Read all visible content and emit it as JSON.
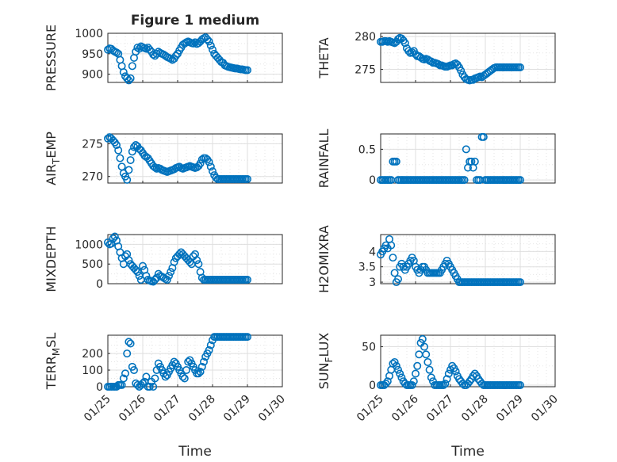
{
  "chart_data": [
    {
      "type": "scatter",
      "title": "Figure 1 medium",
      "ylabel": "PRESSURE",
      "xlim": [
        "01/25",
        "01/30"
      ],
      "ylim": [
        880,
        1000
      ],
      "yticks": [
        "900",
        "950",
        "1000"
      ],
      "x": [
        0,
        0.05,
        0.1,
        0.15,
        0.2,
        0.25,
        0.3,
        0.35,
        0.4,
        0.45,
        0.5,
        0.55,
        0.6,
        0.65,
        0.7,
        0.75,
        0.8,
        0.85,
        0.9,
        0.95,
        1.0,
        1.05,
        1.1,
        1.15,
        1.2,
        1.25,
        1.3,
        1.35,
        1.4,
        1.45,
        1.5,
        1.55,
        1.6,
        1.65,
        1.7,
        1.75,
        1.8,
        1.85,
        1.9,
        1.95,
        2.0,
        2.05,
        2.1,
        2.15,
        2.2,
        2.25,
        2.3,
        2.35,
        2.4,
        2.45,
        2.5,
        2.55,
        2.6,
        2.65,
        2.7,
        2.75,
        2.8,
        2.85,
        2.9,
        2.95,
        3.0,
        3.05,
        3.1,
        3.15,
        3.2,
        3.25,
        3.3,
        3.35,
        3.4,
        3.45,
        3.5,
        3.55,
        3.6,
        3.65,
        3.7,
        3.75,
        3.8,
        3.85,
        3.9,
        3.95,
        4.0
      ],
      "y": [
        960,
        963,
        962,
        958,
        955,
        953,
        950,
        935,
        920,
        905,
        895,
        890,
        885,
        890,
        920,
        940,
        955,
        965,
        962,
        968,
        966,
        964,
        962,
        965,
        960,
        955,
        948,
        945,
        950,
        955,
        952,
        950,
        948,
        945,
        942,
        940,
        938,
        935,
        938,
        945,
        950,
        958,
        965,
        972,
        975,
        978,
        980,
        978,
        976,
        975,
        978,
        974,
        976,
        980,
        985,
        988,
        990,
        985,
        980,
        970,
        960,
        950,
        945,
        940,
        935,
        930,
        928,
        922,
        920,
        918,
        917,
        916,
        915,
        914,
        914,
        913,
        912,
        912,
        911,
        910,
        910
      ]
    },
    {
      "type": "scatter",
      "ylabel": "THETA",
      "xlim": [
        "01/25",
        "01/30"
      ],
      "ylim": [
        273,
        280.5
      ],
      "yticks": [
        "275",
        "280"
      ],
      "x": [
        0,
        0.05,
        0.1,
        0.15,
        0.2,
        0.25,
        0.3,
        0.35,
        0.4,
        0.45,
        0.5,
        0.55,
        0.6,
        0.65,
        0.7,
        0.75,
        0.8,
        0.85,
        0.9,
        0.95,
        1.0,
        1.05,
        1.1,
        1.15,
        1.2,
        1.25,
        1.3,
        1.35,
        1.4,
        1.45,
        1.5,
        1.55,
        1.6,
        1.65,
        1.7,
        1.75,
        1.8,
        1.85,
        1.9,
        1.95,
        2.0,
        2.05,
        2.1,
        2.15,
        2.2,
        2.25,
        2.3,
        2.35,
        2.4,
        2.45,
        2.5,
        2.55,
        2.6,
        2.65,
        2.7,
        2.75,
        2.8,
        2.85,
        2.9,
        2.95,
        3.0,
        3.05,
        3.1,
        3.15,
        3.2,
        3.25,
        3.3,
        3.35,
        3.4,
        3.45,
        3.5,
        3.55,
        3.6,
        3.65,
        3.7,
        3.75,
        3.8,
        3.85,
        3.9,
        3.95,
        4.0
      ],
      "y": [
        279.2,
        279.2,
        279.3,
        279.3,
        279.2,
        279.3,
        279.2,
        279.1,
        279.0,
        279.2,
        279.6,
        279.8,
        279.7,
        279.4,
        279.0,
        278.2,
        277.8,
        277.5,
        277.6,
        277.8,
        277.3,
        277.0,
        277.0,
        276.8,
        276.6,
        276.5,
        276.6,
        276.5,
        276.3,
        276.2,
        276.0,
        276.0,
        275.9,
        275.8,
        275.6,
        275.6,
        275.5,
        275.4,
        275.4,
        275.5,
        275.6,
        275.6,
        275.8,
        275.9,
        275.7,
        275.3,
        274.8,
        274.2,
        273.8,
        273.5,
        273.4,
        273.3,
        273.4,
        273.4,
        273.6,
        273.7,
        273.8,
        273.9,
        273.8,
        274.0,
        274.2,
        274.4,
        274.6,
        274.8,
        275.0,
        275.2,
        275.3,
        275.3,
        275.3,
        275.3,
        275.3,
        275.3,
        275.3,
        275.3,
        275.3,
        275.3,
        275.3,
        275.3,
        275.3,
        275.3,
        275.3
      ]
    },
    {
      "type": "scatter",
      "ylabel": "AIR_TEMP",
      "xlim": [
        "01/25",
        "01/30"
      ],
      "ylim": [
        269,
        276.5
      ],
      "yticks": [
        "270",
        "275"
      ],
      "x": [
        0,
        0.05,
        0.1,
        0.15,
        0.2,
        0.25,
        0.3,
        0.35,
        0.4,
        0.45,
        0.5,
        0.55,
        0.6,
        0.65,
        0.7,
        0.75,
        0.8,
        0.85,
        0.9,
        0.95,
        1.0,
        1.05,
        1.1,
        1.15,
        1.2,
        1.25,
        1.3,
        1.35,
        1.4,
        1.45,
        1.5,
        1.55,
        1.6,
        1.65,
        1.7,
        1.75,
        1.8,
        1.85,
        1.9,
        1.95,
        2.0,
        2.05,
        2.1,
        2.15,
        2.2,
        2.25,
        2.3,
        2.35,
        2.4,
        2.45,
        2.5,
        2.55,
        2.6,
        2.65,
        2.7,
        2.75,
        2.8,
        2.85,
        2.9,
        2.95,
        3.0,
        3.05,
        3.1,
        3.15,
        3.2,
        3.25,
        3.3,
        3.35,
        3.4,
        3.45,
        3.5,
        3.55,
        3.6,
        3.65,
        3.7,
        3.75,
        3.8,
        3.85,
        3.9,
        3.95,
        4.0
      ],
      "y": [
        275.8,
        276.0,
        275.8,
        275.5,
        275.2,
        274.8,
        274.0,
        272.8,
        271.5,
        270.5,
        270.0,
        269.5,
        271.0,
        272.5,
        273.8,
        274.5,
        274.8,
        274.6,
        274.2,
        274.0,
        273.6,
        273.2,
        273.0,
        272.8,
        272.4,
        272.0,
        271.6,
        271.4,
        271.2,
        271.3,
        271.2,
        271.0,
        270.9,
        270.8,
        270.7,
        270.8,
        270.9,
        271.0,
        271.1,
        271.3,
        271.4,
        271.5,
        271.3,
        271.2,
        271.3,
        271.4,
        271.5,
        271.6,
        271.5,
        271.4,
        271.3,
        271.4,
        271.6,
        272.0,
        272.6,
        272.8,
        272.8,
        272.6,
        272.2,
        271.5,
        270.8,
        270.2,
        269.8,
        269.6,
        269.6,
        269.6,
        269.6,
        269.6,
        269.6,
        269.6,
        269.6,
        269.6,
        269.6,
        269.6,
        269.6,
        269.6,
        269.6,
        269.6,
        269.6,
        269.6,
        269.6
      ]
    },
    {
      "type": "scatter",
      "ylabel": "RAINFALL",
      "xlim": [
        "01/25",
        "01/30"
      ],
      "ylim": [
        -0.05,
        0.75
      ],
      "yticks": [
        "0",
        "0.5"
      ],
      "x": [
        0,
        0.05,
        0.1,
        0.15,
        0.2,
        0.25,
        0.3,
        0.35,
        0.4,
        0.45,
        0.5,
        0.55,
        0.6,
        0.65,
        0.7,
        0.75,
        0.8,
        0.85,
        0.9,
        0.95,
        1.0,
        1.05,
        1.1,
        1.15,
        1.2,
        1.25,
        1.3,
        1.35,
        1.4,
        1.45,
        1.5,
        1.55,
        1.6,
        1.65,
        1.7,
        1.75,
        1.8,
        1.85,
        1.9,
        1.95,
        2.0,
        2.05,
        2.1,
        2.15,
        2.2,
        2.25,
        2.3,
        2.35,
        2.4,
        2.45,
        2.5,
        2.55,
        2.6,
        2.65,
        2.7,
        2.75,
        2.8,
        2.85,
        2.9,
        2.95,
        3.0,
        3.05,
        3.1,
        3.15,
        3.2,
        3.25,
        3.3,
        3.35,
        3.4,
        3.45,
        3.5,
        3.55,
        3.6,
        3.65,
        3.7,
        3.75,
        3.8,
        3.85,
        3.9,
        3.95,
        4.0
      ],
      "y": [
        0,
        0,
        0,
        0,
        0,
        0,
        0,
        0.3,
        0.3,
        0.3,
        0,
        0,
        0,
        0,
        0,
        0,
        0,
        0,
        0,
        0,
        0,
        0,
        0,
        0,
        0,
        0,
        0,
        0,
        0,
        0,
        0,
        0,
        0,
        0,
        0,
        0,
        0,
        0,
        0,
        0,
        0,
        0,
        0,
        0,
        0,
        0,
        0,
        0,
        0,
        0.5,
        0.2,
        0.3,
        0.3,
        0.2,
        0.3,
        0,
        0,
        0,
        0.7,
        0.7,
        0,
        0,
        0,
        0,
        0,
        0,
        0,
        0,
        0,
        0,
        0,
        0,
        0,
        0,
        0,
        0,
        0,
        0,
        0,
        0,
        0
      ]
    },
    {
      "type": "scatter",
      "ylabel": "MIXDEPTH",
      "xlim": [
        "01/25",
        "01/30"
      ],
      "ylim": [
        0,
        1250
      ],
      "yticks": [
        "0",
        "500",
        "1000"
      ],
      "x": [
        0,
        0.05,
        0.1,
        0.15,
        0.2,
        0.25,
        0.3,
        0.35,
        0.4,
        0.45,
        0.5,
        0.55,
        0.6,
        0.65,
        0.7,
        0.75,
        0.8,
        0.85,
        0.9,
        0.95,
        1.0,
        1.05,
        1.1,
        1.15,
        1.2,
        1.25,
        1.3,
        1.35,
        1.4,
        1.45,
        1.5,
        1.55,
        1.6,
        1.65,
        1.7,
        1.75,
        1.8,
        1.85,
        1.9,
        1.95,
        2.0,
        2.05,
        2.1,
        2.15,
        2.2,
        2.25,
        2.3,
        2.35,
        2.4,
        2.45,
        2.5,
        2.55,
        2.6,
        2.65,
        2.7,
        2.75,
        2.8,
        2.85,
        2.9,
        2.95,
        3.0,
        3.05,
        3.1,
        3.15,
        3.2,
        3.25,
        3.3,
        3.35,
        3.4,
        3.45,
        3.5,
        3.55,
        3.6,
        3.65,
        3.7,
        3.75,
        3.8,
        3.85,
        3.9,
        3.95,
        4.0
      ],
      "y": [
        1050,
        1000,
        1020,
        1150,
        1200,
        1100,
        950,
        800,
        650,
        500,
        700,
        750,
        600,
        500,
        450,
        400,
        350,
        300,
        200,
        100,
        450,
        350,
        200,
        100,
        80,
        60,
        50,
        100,
        150,
        250,
        200,
        180,
        150,
        120,
        100,
        200,
        300,
        400,
        550,
        650,
        700,
        750,
        800,
        750,
        700,
        650,
        600,
        550,
        500,
        700,
        750,
        600,
        500,
        300,
        150,
        100,
        100,
        100,
        100,
        100,
        100,
        100,
        100,
        100,
        100,
        100,
        100,
        100,
        100,
        100,
        100,
        100,
        100,
        100,
        100,
        100,
        100,
        100,
        100,
        100,
        100
      ]
    },
    {
      "type": "scatter",
      "ylabel": "H2OMIXRA",
      "xlim": [
        "01/25",
        "01/30"
      ],
      "ylim": [
        2.95,
        4.55
      ],
      "yticks": [
        "3",
        "3.5",
        "4"
      ],
      "x": [
        0,
        0.05,
        0.1,
        0.15,
        0.2,
        0.25,
        0.3,
        0.35,
        0.4,
        0.45,
        0.5,
        0.55,
        0.6,
        0.65,
        0.7,
        0.75,
        0.8,
        0.85,
        0.9,
        0.95,
        1.0,
        1.05,
        1.1,
        1.15,
        1.2,
        1.25,
        1.3,
        1.35,
        1.4,
        1.45,
        1.5,
        1.55,
        1.6,
        1.65,
        1.7,
        1.75,
        1.8,
        1.85,
        1.9,
        1.95,
        2.0,
        2.05,
        2.1,
        2.15,
        2.2,
        2.25,
        2.3,
        2.35,
        2.4,
        2.45,
        2.5,
        2.55,
        2.6,
        2.65,
        2.7,
        2.75,
        2.8,
        2.85,
        2.9,
        2.95,
        3.0,
        3.05,
        3.1,
        3.15,
        3.2,
        3.25,
        3.3,
        3.35,
        3.4,
        3.45,
        3.5,
        3.55,
        3.6,
        3.65,
        3.7,
        3.75,
        3.8,
        3.85,
        3.9,
        3.95,
        4.0
      ],
      "y": [
        3.9,
        4.0,
        4.1,
        4.2,
        4.1,
        4.4,
        4.2,
        3.8,
        3.3,
        3.0,
        3.1,
        3.5,
        3.6,
        3.5,
        3.4,
        3.5,
        3.6,
        3.7,
        3.8,
        3.7,
        3.5,
        3.4,
        3.3,
        3.4,
        3.5,
        3.5,
        3.4,
        3.3,
        3.3,
        3.3,
        3.3,
        3.3,
        3.3,
        3.3,
        3.3,
        3.4,
        3.5,
        3.6,
        3.7,
        3.6,
        3.5,
        3.4,
        3.3,
        3.2,
        3.1,
        3.0,
        3.0,
        3.0,
        3.0,
        3.0,
        3.0,
        3.0,
        3.0,
        3.0,
        3.0,
        3.0,
        3.0,
        3.0,
        3.0,
        3.0,
        3.0,
        3.0,
        3.0,
        3.0,
        3.0,
        3.0,
        3.0,
        3.0,
        3.0,
        3.0,
        3.0,
        3.0,
        3.0,
        3.0,
        3.0,
        3.0,
        3.0,
        3.0,
        3.0,
        3.0,
        3.0
      ]
    },
    {
      "type": "scatter",
      "ylabel": "TERR_MSL",
      "xlim": [
        "01/25",
        "01/30"
      ],
      "ylim": [
        0,
        310
      ],
      "yticks": [
        "0",
        "100",
        "200"
      ],
      "x": [
        0,
        0.05,
        0.1,
        0.15,
        0.2,
        0.25,
        0.3,
        0.35,
        0.4,
        0.45,
        0.5,
        0.55,
        0.6,
        0.65,
        0.7,
        0.75,
        0.8,
        0.85,
        0.9,
        0.95,
        1.0,
        1.05,
        1.1,
        1.15,
        1.2,
        1.25,
        1.3,
        1.35,
        1.4,
        1.45,
        1.5,
        1.55,
        1.6,
        1.65,
        1.7,
        1.75,
        1.8,
        1.85,
        1.9,
        1.95,
        2.0,
        2.05,
        2.1,
        2.15,
        2.2,
        2.25,
        2.3,
        2.35,
        2.4,
        2.45,
        2.5,
        2.55,
        2.6,
        2.65,
        2.7,
        2.75,
        2.8,
        2.85,
        2.9,
        2.95,
        3.0,
        3.05,
        3.1,
        3.15,
        3.2,
        3.25,
        3.3,
        3.35,
        3.4,
        3.45,
        3.5,
        3.55,
        3.6,
        3.65,
        3.7,
        3.75,
        3.8,
        3.85,
        3.9,
        3.95,
        4.0
      ],
      "y": [
        0,
        0,
        0,
        0,
        0,
        0,
        10,
        10,
        10,
        50,
        80,
        200,
        270,
        260,
        120,
        100,
        20,
        10,
        0,
        10,
        20,
        30,
        60,
        0,
        0,
        30,
        0,
        50,
        100,
        140,
        120,
        100,
        80,
        60,
        70,
        90,
        110,
        130,
        150,
        140,
        120,
        100,
        80,
        60,
        50,
        100,
        150,
        160,
        140,
        120,
        100,
        80,
        80,
        90,
        120,
        150,
        180,
        200,
        220,
        250,
        280,
        300,
        300,
        300,
        300,
        300,
        300,
        300,
        300,
        300,
        300,
        300,
        300,
        300,
        300,
        300,
        300,
        300,
        300,
        300,
        300
      ]
    },
    {
      "type": "scatter",
      "ylabel": "SUN_FLUX",
      "xlim": [
        "01/25",
        "01/30"
      ],
      "ylim": [
        -2,
        65
      ],
      "yticks": [
        "0",
        "50"
      ],
      "x": [
        0,
        0.05,
        0.1,
        0.15,
        0.2,
        0.25,
        0.3,
        0.35,
        0.4,
        0.45,
        0.5,
        0.55,
        0.6,
        0.65,
        0.7,
        0.75,
        0.8,
        0.85,
        0.9,
        0.95,
        1.0,
        1.05,
        1.1,
        1.15,
        1.2,
        1.25,
        1.3,
        1.35,
        1.4,
        1.45,
        1.5,
        1.55,
        1.6,
        1.65,
        1.7,
        1.75,
        1.8,
        1.85,
        1.9,
        1.95,
        2.0,
        2.05,
        2.1,
        2.15,
        2.2,
        2.25,
        2.3,
        2.35,
        2.4,
        2.45,
        2.5,
        2.55,
        2.6,
        2.65,
        2.7,
        2.75,
        2.8,
        2.85,
        2.9,
        2.95,
        3.0,
        3.05,
        3.1,
        3.15,
        3.2,
        3.25,
        3.3,
        3.35,
        3.4,
        3.45,
        3.5,
        3.55,
        3.6,
        3.65,
        3.7,
        3.75,
        3.8,
        3.85,
        3.9,
        3.95,
        4.0
      ],
      "y": [
        0,
        0,
        0,
        2,
        5,
        12,
        20,
        28,
        30,
        25,
        20,
        15,
        10,
        5,
        2,
        0,
        0,
        0,
        0,
        5,
        15,
        25,
        40,
        55,
        60,
        50,
        40,
        30,
        20,
        10,
        5,
        0,
        0,
        0,
        0,
        0,
        0,
        2,
        8,
        15,
        20,
        25,
        22,
        18,
        12,
        8,
        5,
        2,
        0,
        0,
        2,
        5,
        8,
        12,
        15,
        12,
        8,
        5,
        2,
        0,
        0,
        0,
        0,
        0,
        0,
        0,
        0,
        0,
        0,
        0,
        0,
        0,
        0,
        0,
        0,
        0,
        0,
        0,
        0,
        0,
        0
      ]
    }
  ],
  "shared": {
    "xticks": [
      "01/25",
      "01/26",
      "01/27",
      "01/28",
      "01/29",
      "01/30"
    ],
    "xlabel": "Time",
    "colors": {
      "marker": "#0072bd",
      "axis": "#262626",
      "grid": "#dfdfdf"
    },
    "marker": "open-circle",
    "grid": "on"
  }
}
